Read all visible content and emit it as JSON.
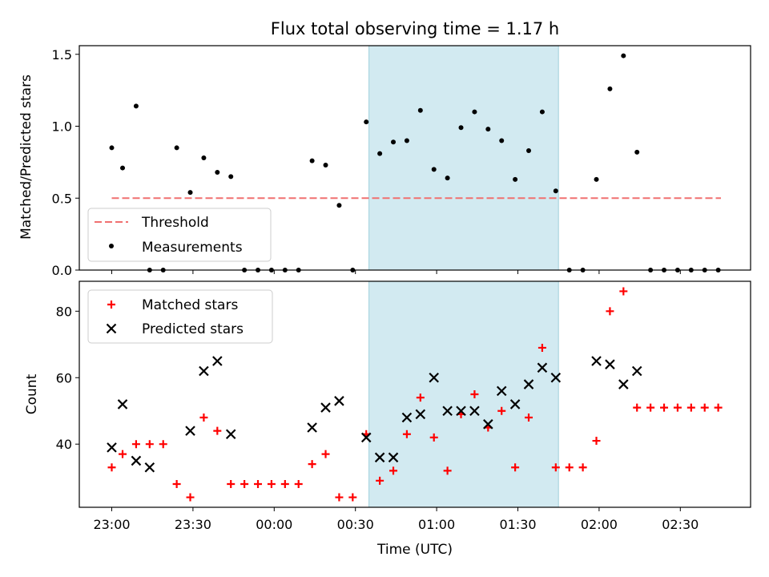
{
  "chart_data": [
    {
      "type": "scatter",
      "title": "Flux total observing time = 1.17 h",
      "xlabel": "",
      "ylabel": "Matched/Predicted stars",
      "ylim": [
        0,
        1.56
      ],
      "yticks": [
        "0.0",
        "0.5",
        "1.0",
        "1.5"
      ],
      "highlight_span": {
        "start": "00:35",
        "end": "01:45",
        "color": "#add8e6"
      },
      "threshold": {
        "name": "Threshold",
        "value": 0.5,
        "from": "23:00",
        "to": "02:45",
        "color": "#f07070",
        "style": "dashed"
      },
      "legend": {
        "position": "lower-left",
        "entries": [
          "Threshold",
          "Measurements"
        ]
      },
      "series": [
        {
          "name": "Measurements",
          "marker": "dot",
          "color": "#000000",
          "x": [
            "23:00",
            "23:04",
            "23:09",
            "23:14",
            "23:19",
            "23:24",
            "23:29",
            "23:34",
            "23:39",
            "23:44",
            "23:49",
            "23:54",
            "23:59",
            "00:04",
            "00:09",
            "00:14",
            "00:19",
            "00:24",
            "00:29",
            "00:34",
            "00:39",
            "00:44",
            "00:49",
            "00:54",
            "00:59",
            "01:04",
            "01:09",
            "01:14",
            "01:19",
            "01:24",
            "01:29",
            "01:34",
            "01:39",
            "01:44",
            "01:49",
            "01:54",
            "01:59",
            "02:04",
            "02:09",
            "02:14",
            "02:19",
            "02:24",
            "02:29",
            "02:34",
            "02:39",
            "02:44"
          ],
          "y": [
            0.85,
            0.71,
            1.14,
            0.0,
            0.0,
            0.85,
            0.54,
            0.78,
            0.68,
            0.65,
            0.0,
            0.0,
            0.0,
            0.0,
            0.0,
            0.76,
            0.73,
            0.45,
            0.0,
            1.03,
            0.81,
            0.89,
            0.9,
            1.11,
            0.7,
            0.64,
            0.99,
            1.1,
            0.98,
            0.9,
            0.63,
            0.83,
            1.1,
            0.55,
            0.0,
            0.0,
            0.63,
            1.26,
            1.49,
            0.82,
            0.0,
            0.0,
            0.0,
            0.0,
            0.0,
            0.0
          ]
        }
      ]
    },
    {
      "type": "scatter",
      "title": "",
      "xlabel": "Time (UTC)",
      "ylabel": "Count",
      "ylim": [
        21,
        89
      ],
      "yticks": [
        "40",
        "60",
        "80"
      ],
      "xticks": [
        "23:00",
        "23:30",
        "00:00",
        "00:30",
        "01:00",
        "01:30",
        "02:00",
        "02:30"
      ],
      "highlight_span": {
        "start": "00:35",
        "end": "01:45",
        "color": "#add8e6"
      },
      "legend": {
        "position": "top-left",
        "entries": [
          "Matched stars",
          "Predicted stars"
        ]
      },
      "series": [
        {
          "name": "Matched stars",
          "marker": "plus",
          "color": "#ff0000",
          "x": [
            "23:00",
            "23:04",
            "23:09",
            "23:14",
            "23:19",
            "23:24",
            "23:29",
            "23:34",
            "23:39",
            "23:44",
            "23:49",
            "23:54",
            "23:59",
            "00:04",
            "00:09",
            "00:14",
            "00:19",
            "00:24",
            "00:29",
            "00:34",
            "00:39",
            "00:44",
            "00:49",
            "00:54",
            "00:59",
            "01:04",
            "01:09",
            "01:14",
            "01:19",
            "01:24",
            "01:29",
            "01:34",
            "01:39",
            "01:44",
            "01:49",
            "01:54",
            "01:59",
            "02:04",
            "02:09",
            "02:14",
            "02:19",
            "02:24",
            "02:29",
            "02:34",
            "02:39",
            "02:44"
          ],
          "y": [
            33,
            37,
            40,
            40,
            40,
            28,
            24,
            48,
            44,
            28,
            28,
            28,
            28,
            28,
            28,
            34,
            37,
            24,
            24,
            43,
            29,
            32,
            43,
            54,
            42,
            32,
            49,
            55,
            45,
            50,
            33,
            48,
            69,
            33,
            33,
            33,
            41,
            80,
            86,
            51,
            51,
            51,
            51,
            51,
            51,
            51
          ]
        },
        {
          "name": "Predicted stars",
          "marker": "x",
          "color": "#000000",
          "x": [
            "23:00",
            "23:04",
            "23:09",
            "23:14",
            "23:29",
            "23:34",
            "23:39",
            "23:44",
            "00:14",
            "00:19",
            "00:24",
            "00:34",
            "00:39",
            "00:44",
            "00:49",
            "00:54",
            "00:59",
            "01:04",
            "01:09",
            "01:14",
            "01:19",
            "01:24",
            "01:29",
            "01:34",
            "01:39",
            "01:44",
            "01:59",
            "02:04",
            "02:09",
            "02:14"
          ],
          "y": [
            39,
            52,
            35,
            33,
            44,
            62,
            65,
            43,
            45,
            51,
            53,
            42,
            36,
            36,
            48,
            49,
            60,
            50,
            50,
            50,
            46,
            56,
            52,
            58,
            63,
            60,
            65,
            64,
            58,
            62
          ]
        }
      ]
    }
  ]
}
